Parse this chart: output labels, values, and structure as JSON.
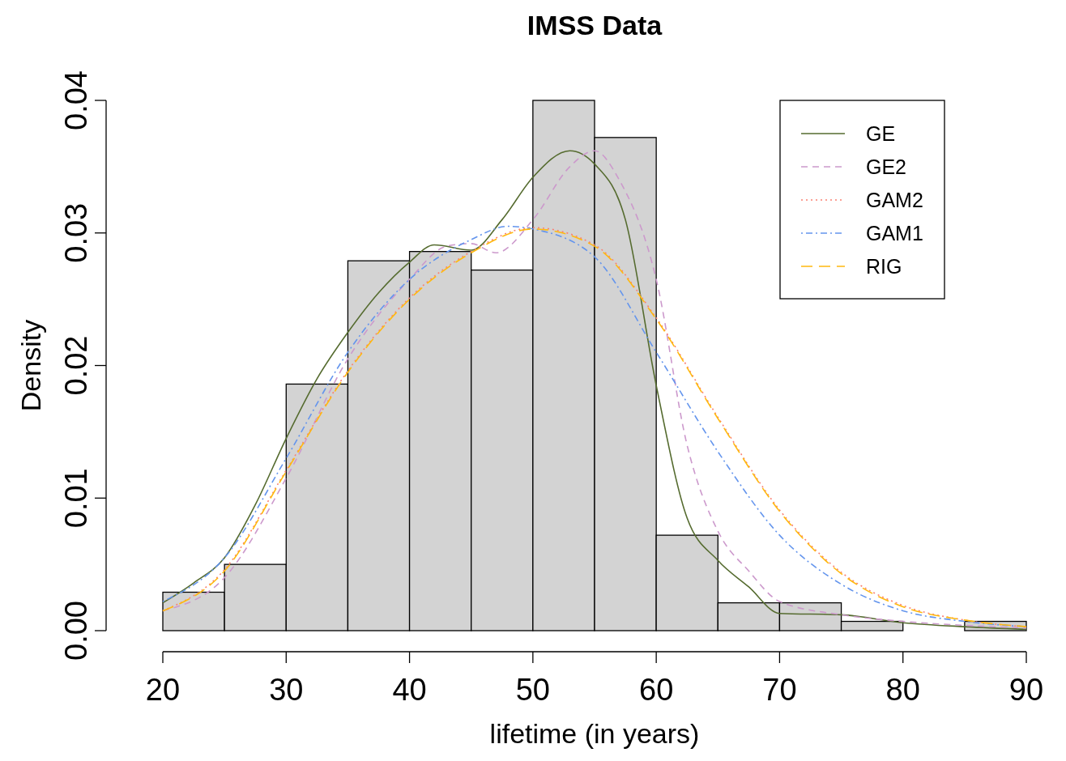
{
  "chart_data": {
    "type": "histogram",
    "title": "IMSS Data",
    "xlabel": "lifetime (in years)",
    "ylabel": "Density",
    "bins": [
      20,
      25,
      30,
      35,
      40,
      45,
      50,
      55,
      60,
      65,
      70,
      75,
      80,
      85,
      90
    ],
    "values": [
      0.0029,
      0.005,
      0.0186,
      0.0279,
      0.0286,
      0.0272,
      0.04,
      0.0372,
      0.0072,
      0.0021,
      0.0021,
      0.0007,
      0,
      0.0007
    ],
    "color": "#d3d3d3",
    "xlim": [
      20,
      90
    ],
    "xticks": [
      20,
      30,
      40,
      50,
      60,
      70,
      80,
      90
    ],
    "ylim": [
      0,
      0.04
    ],
    "yticks": [
      {
        "value": 0,
        "label": "0.00"
      },
      0.01,
      0.02,
      0.03,
      0.04
    ],
    "grid": false,
    "legend": "top right",
    "series": [
      {
        "name": "GE",
        "type": "line",
        "color": "#556b2f",
        "line_style": "solid",
        "x": [
          20,
          22.5,
          25,
          27.5,
          30,
          32.5,
          35,
          37.5,
          40,
          42,
          45,
          47.5,
          50,
          53,
          55,
          57.5,
          60,
          62.5,
          65,
          67.5,
          70,
          75,
          80,
          85,
          90
        ],
        "values": [
          0.0021,
          0.0036,
          0.0055,
          0.0095,
          0.0145,
          0.019,
          0.0225,
          0.0255,
          0.0278,
          0.0291,
          0.0287,
          0.031,
          0.0342,
          0.0362,
          0.0352,
          0.031,
          0.0185,
          0.0085,
          0.0053,
          0.0033,
          0.0013,
          0.0012,
          0.0006,
          0.0003,
          0.0001
        ]
      },
      {
        "name": "GE2",
        "type": "line",
        "color": "#cc99cc",
        "line_style": "dashed",
        "x": [
          20,
          25,
          30,
          35,
          40,
          43,
          45,
          47,
          50,
          53,
          55,
          57,
          60,
          62.5,
          65,
          67.5,
          70,
          75,
          80,
          85,
          90
        ],
        "values": [
          0.0015,
          0.004,
          0.0115,
          0.0205,
          0.0265,
          0.029,
          0.0292,
          0.0285,
          0.031,
          0.035,
          0.0362,
          0.034,
          0.0265,
          0.014,
          0.0075,
          0.0045,
          0.0022,
          0.0012,
          0.0007,
          0.0004,
          0.0002
        ]
      },
      {
        "name": "GAM2",
        "type": "line",
        "color": "#fa8072",
        "line_style": "dotted",
        "x": [
          20,
          25,
          30,
          35,
          40,
          45,
          50,
          55,
          60,
          65,
          70,
          75,
          80,
          85,
          90
        ],
        "values": [
          0.0015,
          0.0046,
          0.0121,
          0.0196,
          0.0251,
          0.0286,
          0.0304,
          0.0291,
          0.0236,
          0.0161,
          0.0091,
          0.0044,
          0.0019,
          0.0008,
          0.0003
        ]
      },
      {
        "name": "GAM1",
        "type": "line",
        "color": "#6495ed",
        "line_style": "dashdot",
        "x": [
          20,
          25,
          30,
          35,
          40,
          45,
          48,
          50,
          55,
          60,
          65,
          70,
          75,
          80,
          85,
          90
        ],
        "values": [
          0.0022,
          0.0055,
          0.013,
          0.021,
          0.0265,
          0.0295,
          0.0305,
          0.0303,
          0.0282,
          0.021,
          0.0135,
          0.0072,
          0.0035,
          0.0015,
          0.0007,
          0.0003
        ]
      },
      {
        "name": "RIG",
        "type": "line",
        "color": "#ffb90f",
        "line_style": "longdash",
        "x": [
          20,
          25,
          30,
          35,
          40,
          45,
          50,
          55,
          60,
          65,
          70,
          75,
          80,
          85,
          90
        ],
        "values": [
          0.0015,
          0.0045,
          0.012,
          0.0195,
          0.025,
          0.0285,
          0.0303,
          0.029,
          0.0235,
          0.016,
          0.009,
          0.0043,
          0.0018,
          0.0008,
          0.0003
        ]
      }
    ]
  }
}
